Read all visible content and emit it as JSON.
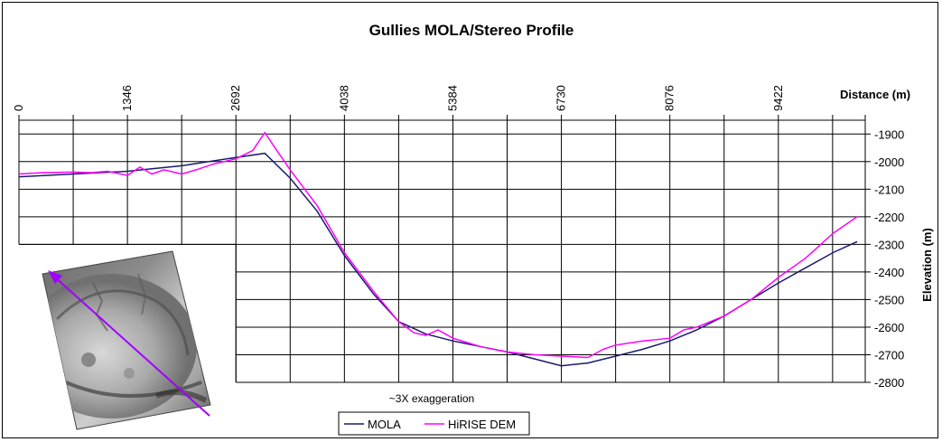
{
  "chart_data": {
    "type": "line",
    "title": "Gullies MOLA/Stereo Profile",
    "xlabel": "Distance (m)",
    "ylabel": "Elevation (m)",
    "annotation": "~3X exaggeration",
    "x_ticks": [
      "0",
      "1346",
      "2692",
      "4038",
      "5384",
      "6730",
      "8076",
      "9422"
    ],
    "y_ticks": [
      "-1900",
      "-2000",
      "-2100",
      "-2200",
      "-2300",
      "-2400",
      "-2500",
      "-2600",
      "-2700",
      "-2800"
    ],
    "xlim": [
      0,
      10500
    ],
    "ylim": [
      -2800,
      -1850
    ],
    "grid": true,
    "legend_position": "bottom-center",
    "series": [
      {
        "name": "MOLA",
        "color": "#1a1a6e",
        "x": [
          0,
          673,
          1346,
          2019,
          2692,
          3050,
          3365,
          3700,
          4038,
          4400,
          4711,
          5050,
          5384,
          5720,
          6057,
          6400,
          6730,
          7060,
          7403,
          7740,
          8076,
          8410,
          8749,
          9085,
          9422,
          9760,
          10100,
          10400
        ],
        "y": [
          -2055,
          -2045,
          -2035,
          -2015,
          -1985,
          -1970,
          -2060,
          -2180,
          -2340,
          -2480,
          -2580,
          -2625,
          -2650,
          -2670,
          -2690,
          -2715,
          -2740,
          -2730,
          -2705,
          -2680,
          -2650,
          -2610,
          -2560,
          -2500,
          -2440,
          -2385,
          -2330,
          -2290
        ]
      },
      {
        "name": "HiRISE DEM",
        "color": "#ff00ff",
        "x": [
          0,
          300,
          673,
          900,
          1100,
          1346,
          1500,
          1650,
          1800,
          2019,
          2200,
          2400,
          2692,
          2900,
          3050,
          3200,
          3365,
          3700,
          4038,
          4400,
          4711,
          4900,
          5050,
          5200,
          5384,
          5720,
          6057,
          6400,
          6730,
          7060,
          7250,
          7403,
          7740,
          8076,
          8250,
          8410,
          8749,
          9085,
          9422,
          9760,
          10100,
          10400
        ],
        "y": [
          -2045,
          -2040,
          -2038,
          -2040,
          -2035,
          -2050,
          -2020,
          -2045,
          -2030,
          -2045,
          -2030,
          -2010,
          -1990,
          -1960,
          -1895,
          -1960,
          -2030,
          -2160,
          -2330,
          -2470,
          -2580,
          -2620,
          -2630,
          -2610,
          -2640,
          -2670,
          -2690,
          -2700,
          -2705,
          -2710,
          -2680,
          -2665,
          -2650,
          -2640,
          -2610,
          -2600,
          -2560,
          -2500,
          -2420,
          -2350,
          -2260,
          -2200
        ]
      }
    ],
    "legend": [
      "MOLA",
      "HiRISE DEM"
    ]
  }
}
